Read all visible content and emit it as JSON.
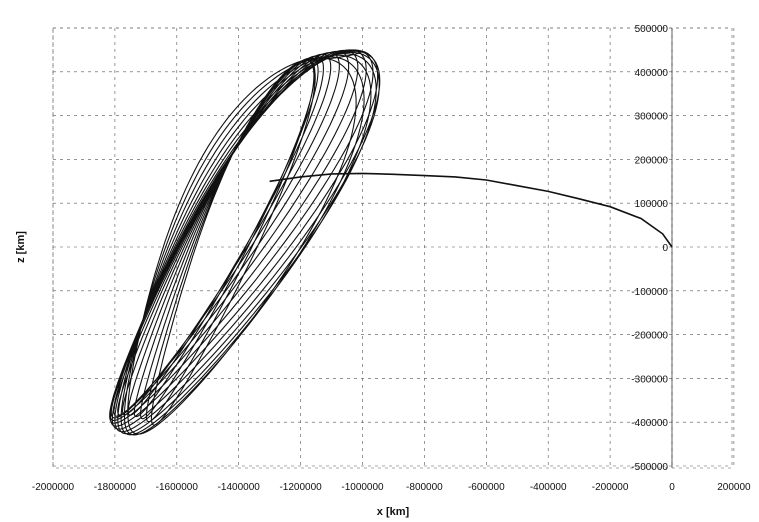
{
  "chart_data": {
    "type": "line",
    "xlabel": "x [km]",
    "ylabel": "z [km]",
    "xlim": [
      -2000000,
      200000
    ],
    "ylim": [
      -500000,
      500000
    ],
    "x_ticks": [
      "-2000000",
      "-1800000",
      "-1600000",
      "-1400000",
      "-1200000",
      "-1000000",
      "-800000",
      "-600000",
      "-400000",
      "-200000",
      "0",
      "200000"
    ],
    "y_ticks": [
      "500000",
      "400000",
      "300000",
      "200000",
      "100000",
      "0",
      "-100000",
      "-200000",
      "-300000",
      "-400000",
      "-500000"
    ],
    "grid": true,
    "transfer_trajectory": {
      "x": [
        0,
        -30000,
        -100000,
        -200000,
        -300000,
        -400000,
        -500000,
        -600000,
        -700000,
        -800000,
        -900000,
        -1000000,
        -1100000,
        -1200000,
        -1300000
      ],
      "z": [
        0,
        30000,
        65000,
        92000,
        110000,
        127000,
        140000,
        153000,
        160000,
        163000,
        166000,
        168000,
        167000,
        160000,
        150000
      ]
    },
    "halo_orbit": {
      "center_x": -1430000,
      "center_z": 20000,
      "loops": 18,
      "x_range": [
        -1700000,
        -1180000
      ],
      "z_range": [
        -385000,
        470000
      ]
    }
  }
}
